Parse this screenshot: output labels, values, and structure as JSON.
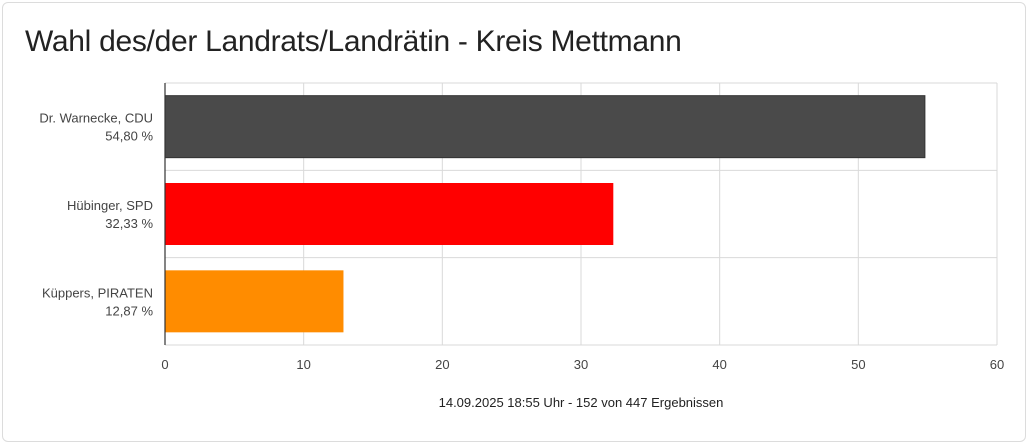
{
  "title": "Wahl des/der Landrats/Landrätin - Kreis Mettmann",
  "chart_data": {
    "type": "bar",
    "orientation": "horizontal",
    "categories": [
      {
        "name": "Dr. Warnecke, CDU",
        "value_label": "54,80 %"
      },
      {
        "name": "Hübinger, SPD",
        "value_label": "32,33 %"
      },
      {
        "name": "Küppers, PIRATEN",
        "value_label": "12,87 %"
      }
    ],
    "values": [
      54.8,
      32.33,
      12.87
    ],
    "colors": [
      "#4a4a4a",
      "#ff0000",
      "#ff8c00"
    ],
    "xlim": [
      0,
      60
    ],
    "xticks": [
      0,
      10,
      20,
      30,
      40,
      50,
      60
    ],
    "grid": true,
    "caption": "14.09.2025 18:55 Uhr - 152 von 447 Ergebnissen"
  }
}
